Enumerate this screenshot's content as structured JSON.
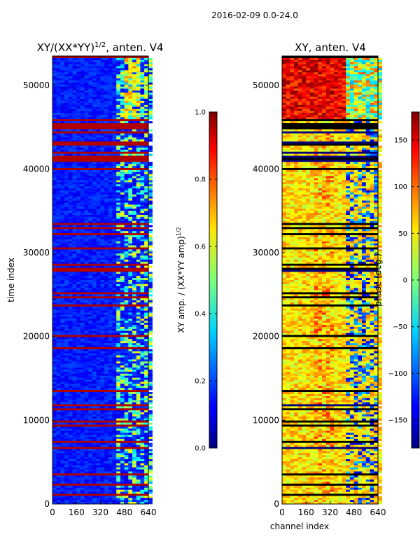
{
  "figure": {
    "suptitle": "2016-02-09 0.0-24.0"
  },
  "chart_data": [
    {
      "id": "left",
      "type": "heatmap",
      "title_main": "XY/(XX*YY)",
      "title_sup": "1/2",
      "title_tail": ", anten. V4",
      "xlabel": "",
      "ylabel": "time index",
      "xlim": [
        0,
        640
      ],
      "ylim": [
        0,
        53500
      ],
      "xticks": [
        0,
        160,
        320,
        480,
        640
      ],
      "yticks": [
        0,
        10000,
        20000,
        30000,
        40000,
        50000
      ],
      "colorbar": {
        "label_main": "XY amp. / (XX*YY amp)",
        "label_sup": "1/2",
        "range": [
          0.0,
          1.0
        ],
        "ticks": [
          "0.0",
          "0.2",
          "0.4",
          "0.6",
          "0.8",
          "1.0"
        ],
        "colormap": "jet"
      }
    },
    {
      "id": "right",
      "type": "heatmap",
      "title": "XY, anten. V4",
      "xlabel": "channel index",
      "ylabel": "",
      "xlim": [
        0,
        640
      ],
      "ylim": [
        0,
        53500
      ],
      "xticks": [
        0,
        160,
        320,
        480,
        640
      ],
      "yticks": [
        0,
        10000,
        20000,
        30000,
        40000,
        50000
      ],
      "colorbar": {
        "label": "phase (deg.)",
        "range": [
          -180,
          180
        ],
        "ticks": [
          "−150",
          "−100",
          "−50",
          "0",
          "50",
          "100",
          "150"
        ],
        "colormap": "jet"
      }
    }
  ]
}
